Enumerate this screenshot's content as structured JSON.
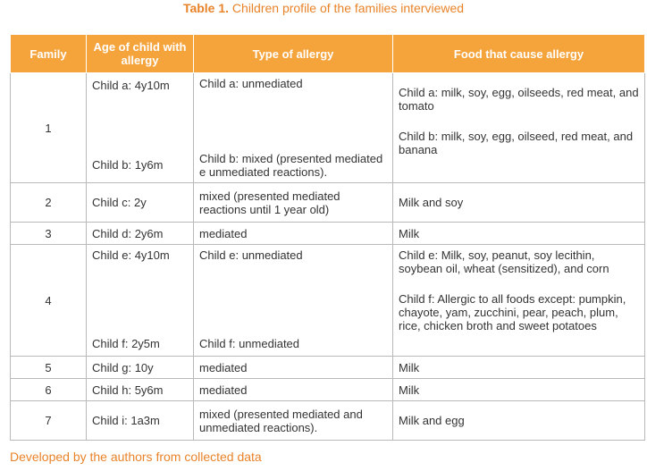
{
  "caption": {
    "label": "Table 1.",
    "text": " Children profile of the families interviewed"
  },
  "table": {
    "headers": [
      "Family",
      "Age of child with allergy",
      "Type of allergy",
      "Food that cause allergy"
    ],
    "rows": [
      {
        "family": "1",
        "age": [
          "Child a: 4y10m",
          "Child b: 1y6m"
        ],
        "type": [
          "Child a: unmediated",
          "Child b: mixed (presented mediated e unmediated reactions)."
        ],
        "food": [
          "Child a: milk, soy, egg, oilseeds, red meat, and tomato",
          "Child b: milk, soy, egg, oilseed, red meat, and banana"
        ]
      },
      {
        "family": "2",
        "age": "Child c: 2y",
        "type": "mixed (presented mediated reactions until 1 year old)",
        "food": "Milk and soy"
      },
      {
        "family": "3",
        "age": "Child d: 2y6m",
        "type": "mediated",
        "food": "Milk"
      },
      {
        "family": "4",
        "age": [
          "Child e: 4y10m",
          "Child f: 2y5m"
        ],
        "type": [
          "Child e: unmediated",
          "Child f: unmediated"
        ],
        "food": [
          "Child e: Milk, soy, peanut, soy lecithin, soybean oil, wheat (sensitized), and corn",
          "Child f: Allergic to all foods except: pumpkin, chayote, yam, zucchini, pear, peach, plum, rice, chicken broth and sweet potatoes"
        ]
      },
      {
        "family": "5",
        "age": "Child g: 10y",
        "type": "mediated",
        "food": "Milk"
      },
      {
        "family": "6",
        "age": "Child h: 5y6m",
        "type": "mediated",
        "food": "Milk"
      },
      {
        "family": "7",
        "age": "Child i: 1a3m",
        "type": "mixed (presented mediated and unmediated reactions).",
        "food": "Milk and egg"
      }
    ]
  },
  "footer": "Developed by the authors from collected data",
  "colors": {
    "accent": "#f5a33b",
    "caption_text": "#e8832a",
    "header_text": "#ffffff",
    "border": "#b9b9b9"
  }
}
